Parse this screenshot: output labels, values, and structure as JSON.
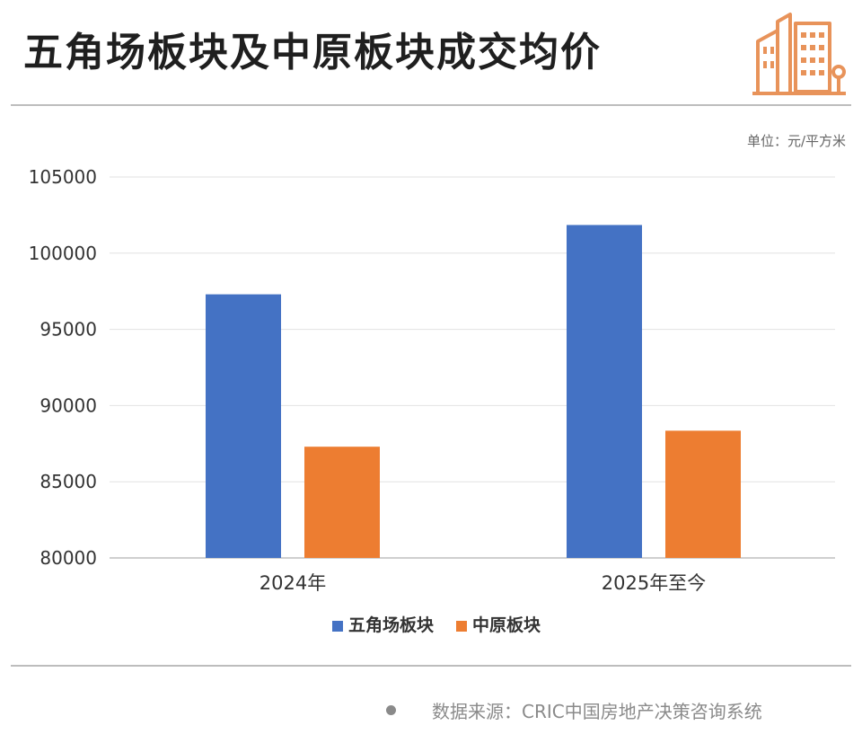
{
  "title": "五角场板块及中原板块成交均价",
  "unit_label": "单位：元/平方米",
  "source_text": "数据来源：CRIC中国房地产决策咨询系统",
  "colors": {
    "series1": "#4472C4",
    "series2": "#ED7D31",
    "logo": "#E8935A"
  },
  "logo_icon": "city-buildings-icon",
  "chart_data": {
    "type": "bar",
    "title": "五角场板块及中原板块成交均价",
    "categories": [
      "2024年",
      "2025年至今"
    ],
    "series": [
      {
        "name": "五角场板块",
        "values": [
          97300,
          101850
        ]
      },
      {
        "name": "中原板块",
        "values": [
          87300,
          88350
        ]
      }
    ],
    "y_ticks": [
      80000,
      85000,
      90000,
      95000,
      100000,
      105000
    ],
    "ylim": [
      80000,
      105000
    ],
    "xlabel": "",
    "ylabel": "",
    "grid": true,
    "legend_position": "bottom"
  }
}
